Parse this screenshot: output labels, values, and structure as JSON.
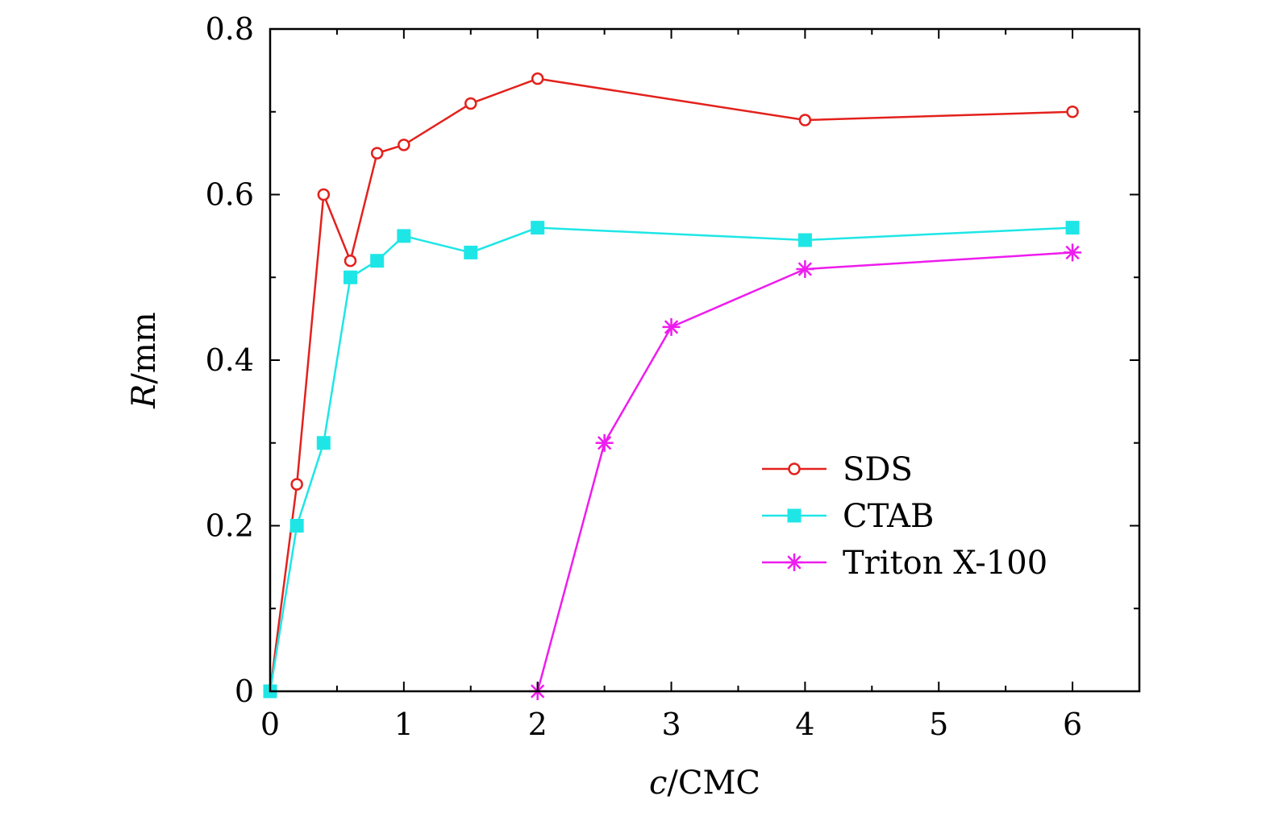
{
  "chart_data": {
    "type": "line",
    "title": "",
    "xlabel": {
      "var": "c",
      "rest": "/CMC"
    },
    "ylabel": {
      "var": "R",
      "rest": "/mm"
    },
    "xlim": [
      0,
      6.5
    ],
    "ylim": [
      0,
      0.8
    ],
    "x_ticks": [
      0,
      1,
      2,
      3,
      4,
      5,
      6
    ],
    "x_tick_labels": [
      "0",
      "1",
      "2",
      "3",
      "4",
      "5",
      "6"
    ],
    "y_ticks": [
      0,
      0.2,
      0.4,
      0.6,
      0.8
    ],
    "y_tick_labels": [
      "0",
      "0.2",
      "0.4",
      "0.6",
      "0.8"
    ],
    "grid": false,
    "legend_position": "lower-right",
    "series": [
      {
        "name": "SDS",
        "color": "#e3211c",
        "marker": "open-circle",
        "x": [
          0,
          0.2,
          0.4,
          0.6,
          0.8,
          1.0,
          1.5,
          2.0,
          4.0,
          6.0
        ],
        "y": [
          0,
          0.25,
          0.6,
          0.52,
          0.65,
          0.66,
          0.71,
          0.74,
          0.69,
          0.7
        ]
      },
      {
        "name": "CTAB",
        "color": "#1fe6e6",
        "marker": "filled-square",
        "x": [
          0,
          0.2,
          0.4,
          0.6,
          0.8,
          1.0,
          1.5,
          2.0,
          4.0,
          6.0
        ],
        "y": [
          0,
          0.2,
          0.3,
          0.5,
          0.52,
          0.55,
          0.53,
          0.56,
          0.545,
          0.56
        ]
      },
      {
        "name": "Triton X-100",
        "color": "#ee1cee",
        "marker": "asterisk",
        "x": [
          2.0,
          2.5,
          3.0,
          4.0,
          6.0
        ],
        "y": [
          0,
          0.3,
          0.44,
          0.51,
          0.53
        ]
      }
    ]
  }
}
